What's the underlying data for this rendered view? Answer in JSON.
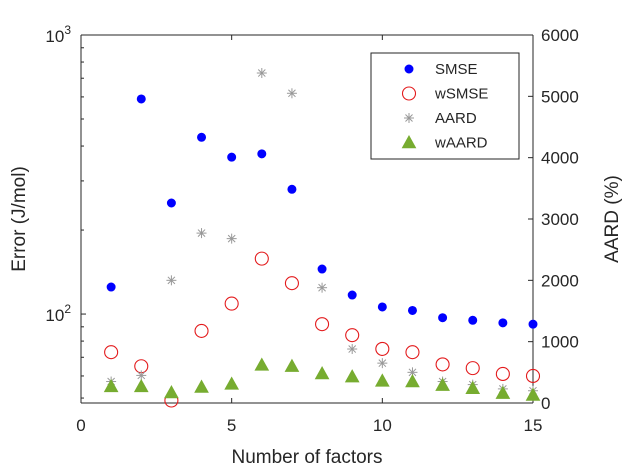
{
  "chart_data": {
    "type": "scatter",
    "xlabel": "Number of factors",
    "ylabel_left": "Error (J/mol)",
    "ylabel_right": "AARD (%)",
    "xlim": [
      0,
      15
    ],
    "xticks": [
      0,
      5,
      10,
      15
    ],
    "ylim_left": [
      48,
      1000
    ],
    "yscale_left": "log",
    "yticks_left": [
      {
        "base": "10",
        "exp": "2",
        "value": 100
      },
      {
        "base": "10",
        "exp": "3",
        "value": 1000
      }
    ],
    "ylim_right": [
      0,
      6000
    ],
    "yticks_right": [
      0,
      1000,
      2000,
      3000,
      4000,
      5000,
      6000
    ],
    "legend_position": "top-right",
    "grid": false,
    "series": [
      {
        "name": "SMSE",
        "axis": "left",
        "marker": "filled-circle",
        "color": "#0000ff",
        "x": [
          1,
          2,
          3,
          4,
          5,
          6,
          7,
          8,
          9,
          10,
          11,
          12,
          13,
          14,
          15
        ],
        "y": [
          125,
          590,
          250,
          430,
          365,
          375,
          280,
          145,
          117,
          106,
          103,
          97,
          95,
          93,
          92
        ]
      },
      {
        "name": "wSMSE",
        "axis": "left",
        "marker": "open-circle",
        "color": "#e31a1c",
        "x": [
          1,
          2,
          3,
          4,
          5,
          6,
          7,
          8,
          9,
          10,
          11,
          12,
          13,
          14,
          15
        ],
        "y": [
          73,
          65,
          49,
          87,
          109,
          158,
          129,
          92,
          84,
          75,
          73,
          66,
          64,
          61,
          60
        ]
      },
      {
        "name": "AARD",
        "axis": "right",
        "marker": "asterisk",
        "color": "#999999",
        "x": [
          1,
          2,
          3,
          4,
          5,
          6,
          7,
          8,
          9,
          10,
          11,
          12,
          13,
          14,
          15
        ],
        "y": [
          350,
          450,
          2000,
          2770,
          2680,
          5380,
          5050,
          1880,
          880,
          650,
          500,
          350,
          300,
          230,
          200
        ]
      },
      {
        "name": "wAARD",
        "axis": "right",
        "marker": "filled-triangle",
        "color": "#77ac30",
        "x": [
          1,
          2,
          3,
          4,
          5,
          6,
          7,
          8,
          9,
          10,
          11,
          12,
          13,
          14,
          15
        ],
        "y": [
          270,
          270,
          170,
          260,
          310,
          620,
          600,
          480,
          430,
          360,
          350,
          290,
          240,
          160,
          130
        ]
      }
    ]
  }
}
